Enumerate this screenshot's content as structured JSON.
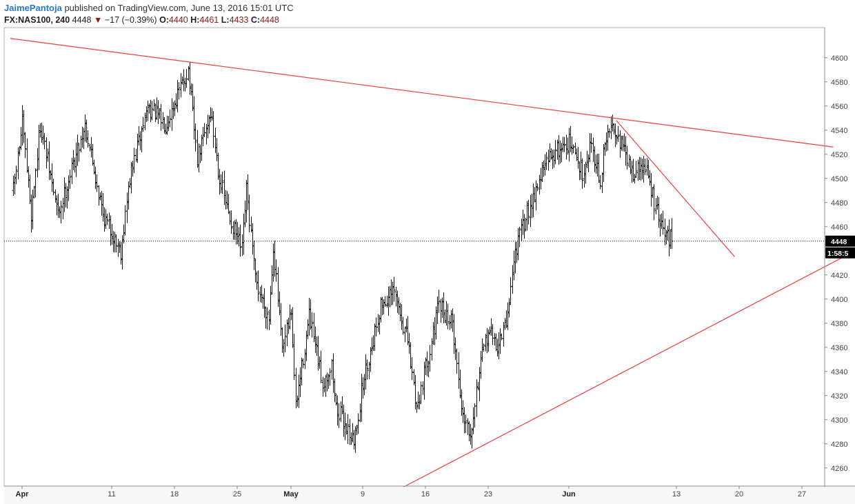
{
  "header": {
    "author": "JaimePantoja",
    "published_text": "published on TradingView.com, June 13, 2016 15:01 UTC",
    "symbol": "FX:NAS100, 240",
    "last": "4448",
    "change": "−17 (−0.39%)",
    "open_label": "O:",
    "open": "4440",
    "high_label": "H:",
    "high": "4461",
    "low_label": "L:",
    "low": "4433",
    "close_label": "C:",
    "close": "4448"
  },
  "price_tag": {
    "price": "4448",
    "countdown": "1:58:5"
  },
  "colors": {
    "trendline": "#f03c3c",
    "bars": "#111111",
    "tag": "#000000",
    "axis": "#888888"
  },
  "chart_data": {
    "type": "ohlc",
    "interval": "240",
    "symbol": "FX:NAS100",
    "y_range": [
      4245,
      4625
    ],
    "y_ticks": [
      4260,
      4280,
      4300,
      4320,
      4340,
      4360,
      4380,
      4400,
      4420,
      4440,
      4460,
      4480,
      4500,
      4520,
      4540,
      4560,
      4580,
      4600
    ],
    "x_ticks": [
      {
        "label": "Apr",
        "day": 1,
        "bold": true
      },
      {
        "label": "11",
        "day": 11,
        "bold": false
      },
      {
        "label": "18",
        "day": 18,
        "bold": false
      },
      {
        "label": "25",
        "day": 25,
        "bold": false
      },
      {
        "label": "May",
        "day": 31,
        "bold": true
      },
      {
        "label": "9",
        "day": 39,
        "bold": false
      },
      {
        "label": "16",
        "day": 46,
        "bold": false
      },
      {
        "label": "23",
        "day": 53,
        "bold": false
      },
      {
        "label": "Jun",
        "day": 62,
        "bold": true
      },
      {
        "label": "13",
        "day": 74,
        "bold": false
      },
      {
        "label": "20",
        "day": 81,
        "bold": false
      },
      {
        "label": "27",
        "day": 88,
        "bold": false
      }
    ],
    "current_price": 4448,
    "anchors": [
      [
        0,
        4490
      ],
      [
        1,
        4545
      ],
      [
        2,
        4470
      ],
      [
        3,
        4545
      ],
      [
        5,
        4470
      ],
      [
        6,
        4495
      ],
      [
        8,
        4545
      ],
      [
        10,
        4470
      ],
      [
        12,
        4440
      ],
      [
        13,
        4500
      ],
      [
        15,
        4560
      ],
      [
        17,
        4545
      ],
      [
        19.5,
        4590
      ],
      [
        20.5,
        4515
      ],
      [
        22,
        4555
      ],
      [
        23,
        4500
      ],
      [
        24,
        4470
      ],
      [
        25.5,
        4440
      ],
      [
        26,
        4490
      ],
      [
        27,
        4415
      ],
      [
        28.5,
        4385
      ],
      [
        29,
        4445
      ],
      [
        30,
        4355
      ],
      [
        31,
        4390
      ],
      [
        31.5,
        4310
      ],
      [
        32.5,
        4360
      ],
      [
        33,
        4385
      ],
      [
        34.5,
        4330
      ],
      [
        35.5,
        4345
      ],
      [
        36,
        4310
      ],
      [
        37.5,
        4290
      ],
      [
        38,
        4280
      ],
      [
        39,
        4330
      ],
      [
        41,
        4395
      ],
      [
        42.5,
        4405
      ],
      [
        44,
        4365
      ],
      [
        45,
        4310
      ],
      [
        46.5,
        4360
      ],
      [
        47.5,
        4395
      ],
      [
        49,
        4380
      ],
      [
        50,
        4310
      ],
      [
        51,
        4290
      ],
      [
        52,
        4340
      ],
      [
        53,
        4375
      ],
      [
        54,
        4360
      ],
      [
        55,
        4380
      ],
      [
        56,
        4440
      ],
      [
        57.5,
        4475
      ],
      [
        59,
        4505
      ],
      [
        60,
        4520
      ],
      [
        62,
        4530
      ],
      [
        63.5,
        4505
      ],
      [
        64.5,
        4530
      ],
      [
        65.5,
        4495
      ],
      [
        66,
        4530
      ],
      [
        67,
        4545
      ],
      [
        68,
        4525
      ],
      [
        69,
        4505
      ],
      [
        70.5,
        4510
      ],
      [
        71.5,
        4480
      ],
      [
        72.5,
        4455
      ],
      [
        73.6,
        4448
      ]
    ],
    "trendlines": [
      {
        "name": "upper",
        "points": [
          [
            -0.3,
            4616
          ],
          [
            91.5,
            4526
          ]
        ]
      },
      {
        "name": "lower",
        "points": [
          [
            43.5,
            4244
          ],
          [
            96,
            4448
          ]
        ]
      },
      {
        "name": "descending",
        "points": [
          [
            67.3,
            4548
          ],
          [
            80.5,
            4435
          ]
        ]
      }
    ]
  }
}
